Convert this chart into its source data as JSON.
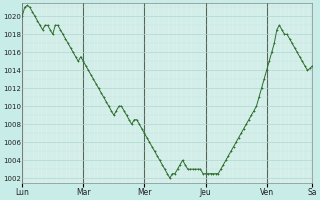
{
  "bg_color": "#c8ece8",
  "plot_bg_color": "#d8f0ec",
  "grid_color_major_y": "#b0d8d0",
  "grid_color_minor": "#c0e4de",
  "grid_color_day": "#556655",
  "line_color": "#2d6e2d",
  "marker_color": "#2d6e2d",
  "ylim": [
    1001.5,
    1021.5
  ],
  "yticks": [
    1002,
    1004,
    1006,
    1008,
    1010,
    1012,
    1014,
    1016,
    1018,
    1020
  ],
  "day_labels": [
    "Lun",
    "Mar",
    "Mer",
    "Jeu",
    "Ven",
    "Sa"
  ],
  "day_x_positions": [
    0,
    24,
    48,
    72,
    96,
    114
  ],
  "pressure_values": [
    1020.0,
    1021.0,
    1021.2,
    1021.0,
    1020.5,
    1020.0,
    1019.5,
    1019.0,
    1018.5,
    1019.0,
    1019.0,
    1018.5,
    1018.0,
    1019.0,
    1019.0,
    1018.5,
    1018.0,
    1017.5,
    1017.0,
    1016.5,
    1016.0,
    1015.5,
    1015.0,
    1015.5,
    1015.0,
    1014.5,
    1014.0,
    1013.5,
    1013.0,
    1012.5,
    1012.0,
    1011.5,
    1011.0,
    1010.5,
    1010.0,
    1009.5,
    1009.0,
    1009.5,
    1010.0,
    1010.0,
    1009.5,
    1009.0,
    1008.5,
    1008.0,
    1008.5,
    1008.5,
    1008.0,
    1007.5,
    1007.0,
    1006.5,
    1006.0,
    1005.5,
    1005.0,
    1004.5,
    1004.0,
    1003.5,
    1003.0,
    1002.5,
    1002.0,
    1002.5,
    1002.5,
    1003.0,
    1003.5,
    1004.0,
    1003.5,
    1003.0,
    1003.0,
    1003.0,
    1003.0,
    1003.0,
    1003.0,
    1002.5,
    1002.5,
    1002.5,
    1002.5,
    1002.5,
    1002.5,
    1002.5,
    1003.0,
    1003.5,
    1004.0,
    1004.5,
    1005.0,
    1005.5,
    1006.0,
    1006.5,
    1007.0,
    1007.5,
    1008.0,
    1008.5,
    1009.0,
    1009.5,
    1010.0,
    1011.0,
    1012.0,
    1013.0,
    1014.0,
    1015.0,
    1016.0,
    1017.0,
    1018.5,
    1019.0,
    1018.5,
    1018.0,
    1018.0,
    1017.5,
    1017.0,
    1016.5,
    1016.0,
    1015.5,
    1015.0,
    1014.5,
    1014.0,
    1014.2,
    1014.5
  ]
}
